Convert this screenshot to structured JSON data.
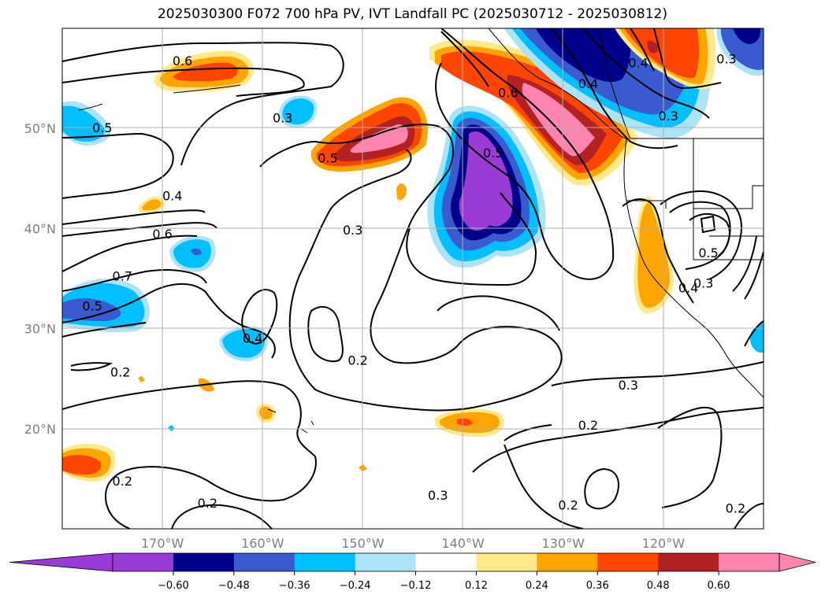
{
  "title": "2025030300 F072 700 hPa PV, IVT Landfall PC (2025030712 - 2025030812)",
  "lat_labels": [
    {
      "text": "50°N",
      "lat": 50
    },
    {
      "text": "40°N",
      "lat": 40
    },
    {
      "text": "30°N",
      "lat": 30
    },
    {
      "text": "20°N",
      "lat": 20
    }
  ],
  "lon_labels": [
    {
      "text": "170°W",
      "lon": -170
    },
    {
      "text": "160°W",
      "lon": -160
    },
    {
      "text": "150°W",
      "lon": -150
    },
    {
      "text": "140°W",
      "lon": -140
    },
    {
      "text": "130°W",
      "lon": -130
    },
    {
      "text": "120°W",
      "lon": -120
    }
  ],
  "colorbar": {
    "colors": [
      "#9b3bd6",
      "#00008b",
      "#3a5bcf",
      "#00bfff",
      "#ade3f7",
      "#ffffff",
      "#ffe98a",
      "#ffa500",
      "#ff4500",
      "#b22222",
      "#ff85b0"
    ],
    "under_color": "#9b3bd6",
    "over_color": "#ff85b0",
    "tick_labels": [
      "−0.60",
      "−0.48",
      "−0.36",
      "−0.24",
      "−0.12",
      "0.12",
      "0.24",
      "0.36",
      "0.48",
      "0.60"
    ]
  },
  "contour_labels": [
    {
      "text": "0.6",
      "lon": -168,
      "lat": 56.7
    },
    {
      "text": "0.3",
      "lon": -158,
      "lat": 51.0
    },
    {
      "text": "0.5",
      "lon": -176,
      "lat": 50.0
    },
    {
      "text": "0.5",
      "lon": -153.5,
      "lat": 47.0
    },
    {
      "text": "0.4",
      "lon": -169,
      "lat": 43.2
    },
    {
      "text": "0.6",
      "lon": -170,
      "lat": 39.4
    },
    {
      "text": "0.3",
      "lon": -151,
      "lat": 39.8
    },
    {
      "text": "0.7",
      "lon": -174,
      "lat": 35.2
    },
    {
      "text": "0.5",
      "lon": -177,
      "lat": 32.2
    },
    {
      "text": "0.4",
      "lon": -161,
      "lat": 29.0
    },
    {
      "text": "0.2",
      "lon": -174.2,
      "lat": 25.6
    },
    {
      "text": "0.2",
      "lon": -150.5,
      "lat": 26.8
    },
    {
      "text": "0.2",
      "lon": -174,
      "lat": 14.7
    },
    {
      "text": "0.2",
      "lon": -165.5,
      "lat": 12.5
    },
    {
      "text": "0.3",
      "lon": -142.5,
      "lat": 13.3
    },
    {
      "text": "0.6",
      "lon": -135.5,
      "lat": 53.5
    },
    {
      "text": "0.5",
      "lon": -137,
      "lat": 47.5
    },
    {
      "text": "0.4",
      "lon": -127.5,
      "lat": 54.4
    },
    {
      "text": "0.4",
      "lon": -122.5,
      "lat": 56.5
    },
    {
      "text": "0.3",
      "lon": -119.5,
      "lat": 51.2
    },
    {
      "text": "0.3",
      "lon": -113.7,
      "lat": 56.9
    },
    {
      "text": "0.5",
      "lon": -115.5,
      "lat": 37.5
    },
    {
      "text": "0.4",
      "lon": -117.5,
      "lat": 34.0
    },
    {
      "text": "0.3",
      "lon": -116,
      "lat": 34.5
    },
    {
      "text": "0.3",
      "lon": -123.5,
      "lat": 24.3
    },
    {
      "text": "0.2",
      "lon": -127.5,
      "lat": 20.3
    },
    {
      "text": "0.2",
      "lon": -129.5,
      "lat": 12.3
    },
    {
      "text": "0.2",
      "lon": -112.8,
      "lat": 12.0
    }
  ]
}
